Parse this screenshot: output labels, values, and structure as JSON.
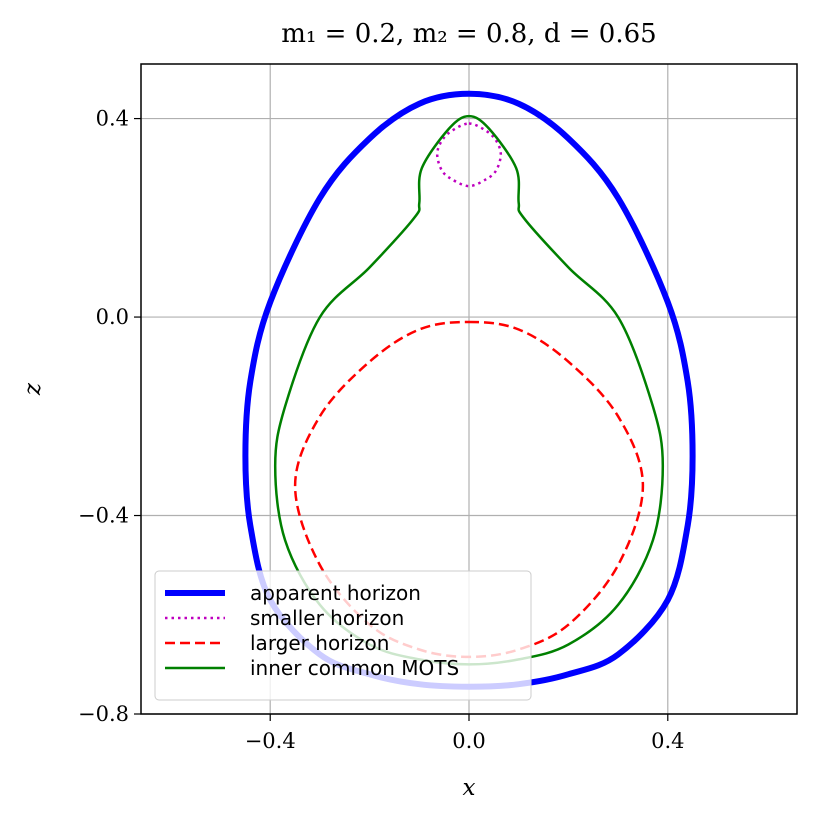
{
  "chart_data": {
    "type": "line",
    "title": "m₁ = 0.2, m₂ = 0.8, d = 0.65",
    "xlabel": "x",
    "ylabel": "z",
    "xlim": [
      -0.66,
      0.66
    ],
    "ylim": [
      -0.8,
      0.51
    ],
    "xticks": [
      -0.4,
      0.0,
      0.4
    ],
    "yticks": [
      -0.8,
      -0.4,
      0.0,
      0.4
    ],
    "xtick_labels": [
      "−0.4",
      "0.0",
      "0.4"
    ],
    "ytick_labels": [
      "−0.8",
      "−0.4",
      "0.0",
      "0.4"
    ],
    "grid": true,
    "legend_position": "bottom-left",
    "series": [
      {
        "name": "apparent horizon",
        "color": "#0000ff",
        "style": "solid",
        "x": [
          0.0,
          0.1,
          0.2,
          0.3,
          0.4,
          0.44,
          0.45,
          0.44,
          0.4,
          0.3,
          0.2,
          0.1,
          0.0
        ],
        "z": [
          0.45,
          0.43,
          0.36,
          0.24,
          0.03,
          -0.13,
          -0.28,
          -0.42,
          -0.57,
          -0.68,
          -0.72,
          -0.74,
          -0.745
        ]
      },
      {
        "name": "smaller horizon",
        "color": "#bf00bf",
        "style": "dotted",
        "x": [
          0.0,
          0.035,
          0.055,
          0.064,
          0.055,
          0.035,
          0.0
        ],
        "z": [
          0.39,
          0.375,
          0.355,
          0.328,
          0.296,
          0.278,
          0.264
        ]
      },
      {
        "name": "larger horizon",
        "color": "#ff0000",
        "style": "dashed",
        "x": [
          0.0,
          0.1,
          0.2,
          0.3,
          0.35,
          0.3,
          0.2,
          0.1,
          0.0
        ],
        "z": [
          -0.01,
          -0.025,
          -0.09,
          -0.2,
          -0.34,
          -0.5,
          -0.62,
          -0.67,
          -0.685
        ]
      },
      {
        "name": "inner common MOTS",
        "color": "#008000",
        "style": "solid",
        "x": [
          0.0,
          0.04,
          0.095,
          0.1,
          0.11,
          0.2,
          0.3,
          0.37,
          0.39,
          0.37,
          0.3,
          0.2,
          0.1,
          0.0
        ],
        "z": [
          0.405,
          0.38,
          0.3,
          0.23,
          0.2,
          0.1,
          0.0,
          -0.18,
          -0.3,
          -0.45,
          -0.58,
          -0.66,
          -0.69,
          -0.7
        ]
      }
    ]
  }
}
